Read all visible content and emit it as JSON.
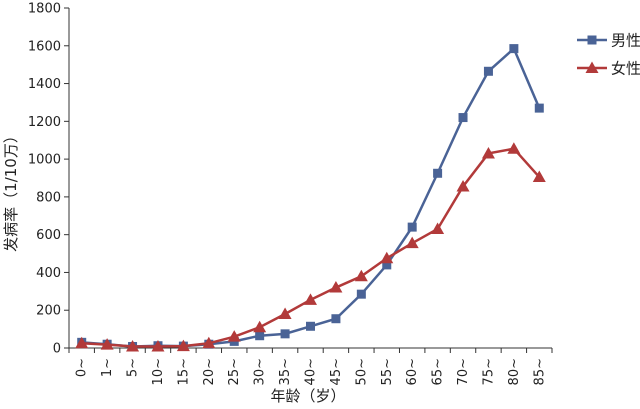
{
  "chart_data": {
    "type": "line",
    "title": "",
    "xlabel": "年龄（岁）",
    "ylabel": "发病率（1/10万）",
    "ylim": [
      0,
      1800
    ],
    "yticks": [
      0,
      200,
      400,
      600,
      800,
      1000,
      1200,
      1400,
      1600,
      1800
    ],
    "grid": false,
    "legend_position": "top-right",
    "categories": [
      "0~",
      "1~",
      "5~",
      "10~",
      "15~",
      "20~",
      "25~",
      "30~",
      "35~",
      "40~",
      "45~",
      "50~",
      "55~",
      "60~",
      "65~",
      "70~",
      "75~",
      "80~",
      "85~"
    ],
    "series": [
      {
        "name": "男性",
        "color": "#4a6396",
        "marker": "square",
        "values": [
          30,
          20,
          8,
          12,
          10,
          20,
          35,
          65,
          75,
          115,
          155,
          285,
          440,
          640,
          925,
          1220,
          1465,
          1585,
          1270
        ]
      },
      {
        "name": "女性",
        "color": "#b23a3a",
        "marker": "triangle",
        "values": [
          25,
          18,
          8,
          8,
          10,
          25,
          60,
          110,
          180,
          255,
          320,
          380,
          475,
          555,
          630,
          855,
          1030,
          1055,
          905
        ]
      }
    ]
  }
}
